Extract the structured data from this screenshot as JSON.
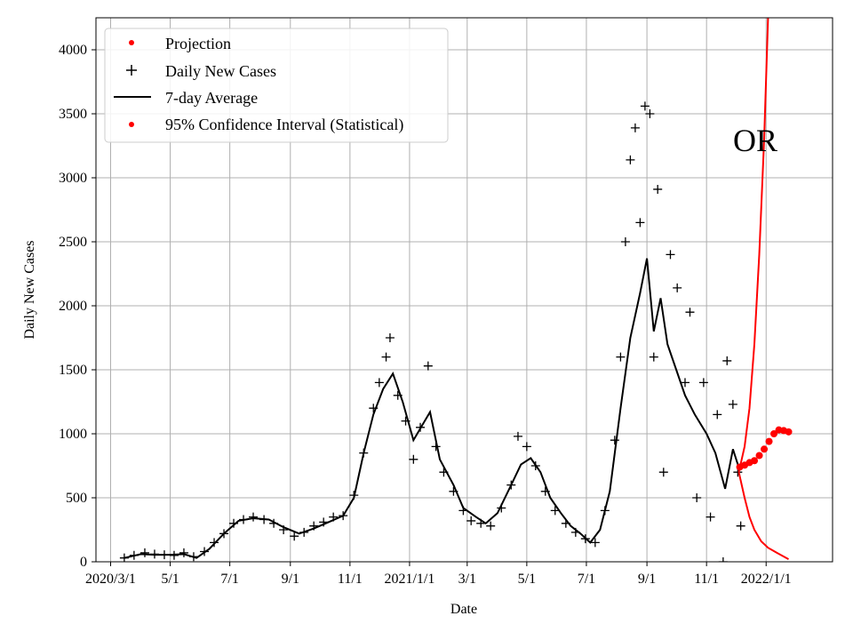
{
  "chart_data": {
    "type": "line",
    "xlabel": "Date",
    "ylabel": "Daily New Cases",
    "xlim": [
      "2020-02-15",
      "2022-03-10"
    ],
    "ylim": [
      0,
      4250
    ],
    "grid": true,
    "legend_position": "top-left",
    "x_ticks": [
      {
        "date": "2020-03-01",
        "label": "2020/3/1"
      },
      {
        "date": "2020-05-01",
        "label": "5/1"
      },
      {
        "date": "2020-07-01",
        "label": "7/1"
      },
      {
        "date": "2020-09-01",
        "label": "9/1"
      },
      {
        "date": "2020-11-01",
        "label": "11/1"
      },
      {
        "date": "2021-01-01",
        "label": "2021/1/1"
      },
      {
        "date": "2021-03-01",
        "label": "3/1"
      },
      {
        "date": "2021-05-01",
        "label": "5/1"
      },
      {
        "date": "2021-07-01",
        "label": "7/1"
      },
      {
        "date": "2021-09-01",
        "label": "9/1"
      },
      {
        "date": "2021-11-01",
        "label": "11/1"
      },
      {
        "date": "2022-01-01",
        "label": "2022/1/1"
      }
    ],
    "y_ticks": [
      {
        "value": 0,
        "label": "0"
      },
      {
        "value": 500,
        "label": "500"
      },
      {
        "value": 1000,
        "label": "1000"
      },
      {
        "value": 1500,
        "label": "1500"
      },
      {
        "value": 2000,
        "label": "2000"
      },
      {
        "value": 2500,
        "label": "2500"
      },
      {
        "value": 3000,
        "label": "3000"
      },
      {
        "value": 3500,
        "label": "3500"
      },
      {
        "value": 4000,
        "label": "4000"
      }
    ],
    "annotation": {
      "text": "OR"
    },
    "legend": [
      {
        "label": "Projection",
        "marker": "dot",
        "color": "#ff0000"
      },
      {
        "label": "Daily New Cases",
        "marker": "plus",
        "color": "#000000"
      },
      {
        "label": "7-day Average",
        "marker": "line",
        "color": "#000000"
      },
      {
        "label": "95% Confidence Interval (Statistical)",
        "marker": "dot",
        "color": "#ff0000"
      }
    ],
    "series": [
      {
        "name": "7-day Average",
        "color": "#000000",
        "points": [
          [
            "2020-03-15",
            30
          ],
          [
            "2020-04-01",
            60
          ],
          [
            "2020-04-15",
            55
          ],
          [
            "2020-05-01",
            55
          ],
          [
            "2020-05-15",
            60
          ],
          [
            "2020-05-28",
            30
          ],
          [
            "2020-06-10",
            100
          ],
          [
            "2020-06-25",
            220
          ],
          [
            "2020-07-10",
            320
          ],
          [
            "2020-07-25",
            340
          ],
          [
            "2020-08-10",
            330
          ],
          [
            "2020-08-25",
            270
          ],
          [
            "2020-09-10",
            220
          ],
          [
            "2020-09-25",
            260
          ],
          [
            "2020-10-10",
            310
          ],
          [
            "2020-10-25",
            360
          ],
          [
            "2020-11-05",
            500
          ],
          [
            "2020-11-15",
            850
          ],
          [
            "2020-11-25",
            1150
          ],
          [
            "2020-12-05",
            1350
          ],
          [
            "2020-12-15",
            1470
          ],
          [
            "2020-12-25",
            1250
          ],
          [
            "2021-01-05",
            950
          ],
          [
            "2021-01-15",
            1080
          ],
          [
            "2021-01-22",
            1170
          ],
          [
            "2021-02-01",
            800
          ],
          [
            "2021-02-15",
            600
          ],
          [
            "2021-02-25",
            420
          ],
          [
            "2021-03-10",
            350
          ],
          [
            "2021-03-20",
            300
          ],
          [
            "2021-04-01",
            380
          ],
          [
            "2021-04-15",
            600
          ],
          [
            "2021-04-25",
            760
          ],
          [
            "2021-05-05",
            810
          ],
          [
            "2021-05-15",
            700
          ],
          [
            "2021-05-25",
            500
          ],
          [
            "2021-06-05",
            380
          ],
          [
            "2021-06-15",
            280
          ],
          [
            "2021-06-25",
            220
          ],
          [
            "2021-07-05",
            150
          ],
          [
            "2021-07-15",
            250
          ],
          [
            "2021-07-25",
            550
          ],
          [
            "2021-08-05",
            1200
          ],
          [
            "2021-08-15",
            1750
          ],
          [
            "2021-08-25",
            2100
          ],
          [
            "2021-09-01",
            2370
          ],
          [
            "2021-09-08",
            1800
          ],
          [
            "2021-09-15",
            2060
          ],
          [
            "2021-09-22",
            1700
          ],
          [
            "2021-10-01",
            1500
          ],
          [
            "2021-10-10",
            1300
          ],
          [
            "2021-10-20",
            1150
          ],
          [
            "2021-11-01",
            1000
          ],
          [
            "2021-11-10",
            850
          ],
          [
            "2021-11-20",
            570
          ],
          [
            "2021-11-28",
            880
          ],
          [
            "2021-12-03",
            760
          ]
        ]
      },
      {
        "name": "Daily New Cases",
        "color": "#000000",
        "points": [
          [
            "2020-03-15",
            30
          ],
          [
            "2020-03-25",
            50
          ],
          [
            "2020-04-05",
            70
          ],
          [
            "2020-04-15",
            60
          ],
          [
            "2020-04-25",
            55
          ],
          [
            "2020-05-05",
            50
          ],
          [
            "2020-05-15",
            70
          ],
          [
            "2020-05-25",
            40
          ],
          [
            "2020-06-05",
            80
          ],
          [
            "2020-06-15",
            150
          ],
          [
            "2020-06-25",
            220
          ],
          [
            "2020-07-05",
            300
          ],
          [
            "2020-07-15",
            330
          ],
          [
            "2020-07-25",
            350
          ],
          [
            "2020-08-05",
            330
          ],
          [
            "2020-08-15",
            300
          ],
          [
            "2020-08-25",
            250
          ],
          [
            "2020-09-05",
            200
          ],
          [
            "2020-09-15",
            230
          ],
          [
            "2020-09-25",
            280
          ],
          [
            "2020-10-05",
            310
          ],
          [
            "2020-10-15",
            350
          ],
          [
            "2020-10-25",
            360
          ],
          [
            "2020-11-05",
            520
          ],
          [
            "2020-11-15",
            850
          ],
          [
            "2020-11-25",
            1200
          ],
          [
            "2020-12-01",
            1400
          ],
          [
            "2020-12-08",
            1600
          ],
          [
            "2020-12-12",
            1750
          ],
          [
            "2020-12-20",
            1300
          ],
          [
            "2020-12-28",
            1100
          ],
          [
            "2021-01-05",
            800
          ],
          [
            "2021-01-12",
            1050
          ],
          [
            "2021-01-20",
            1530
          ],
          [
            "2021-01-28",
            900
          ],
          [
            "2021-02-05",
            700
          ],
          [
            "2021-02-15",
            550
          ],
          [
            "2021-02-25",
            400
          ],
          [
            "2021-03-05",
            320
          ],
          [
            "2021-03-15",
            300
          ],
          [
            "2021-03-25",
            280
          ],
          [
            "2021-04-05",
            420
          ],
          [
            "2021-04-15",
            600
          ],
          [
            "2021-04-22",
            980
          ],
          [
            "2021-05-01",
            900
          ],
          [
            "2021-05-10",
            750
          ],
          [
            "2021-05-20",
            550
          ],
          [
            "2021-05-30",
            400
          ],
          [
            "2021-06-10",
            300
          ],
          [
            "2021-06-20",
            230
          ],
          [
            "2021-06-30",
            180
          ],
          [
            "2021-07-10",
            150
          ],
          [
            "2021-07-20",
            400
          ],
          [
            "2021-07-30",
            950
          ],
          [
            "2021-08-05",
            1600
          ],
          [
            "2021-08-10",
            2500
          ],
          [
            "2021-08-15",
            3140
          ],
          [
            "2021-08-20",
            3390
          ],
          [
            "2021-08-25",
            2650
          ],
          [
            "2021-08-30",
            3560
          ],
          [
            "2021-09-04",
            3500
          ],
          [
            "2021-09-08",
            1600
          ],
          [
            "2021-09-12",
            2910
          ],
          [
            "2021-09-18",
            700
          ],
          [
            "2021-09-25",
            2400
          ],
          [
            "2021-10-02",
            2140
          ],
          [
            "2021-10-10",
            1400
          ],
          [
            "2021-10-15",
            1950
          ],
          [
            "2021-10-22",
            500
          ],
          [
            "2021-10-29",
            1400
          ],
          [
            "2021-11-05",
            350
          ],
          [
            "2021-11-12",
            1150
          ],
          [
            "2021-11-18",
            0
          ],
          [
            "2021-11-22",
            1570
          ],
          [
            "2021-11-28",
            1230
          ],
          [
            "2021-12-03",
            700
          ],
          [
            "2021-12-06",
            280
          ]
        ]
      },
      {
        "name": "Projection",
        "color": "#ff0000",
        "points": [
          [
            "2021-12-05",
            740
          ],
          [
            "2021-12-10",
            755
          ],
          [
            "2021-12-15",
            775
          ],
          [
            "2021-12-20",
            790
          ],
          [
            "2021-12-25",
            830
          ],
          [
            "2021-12-30",
            880
          ],
          [
            "2022-01-04",
            940
          ],
          [
            "2022-01-09",
            1000
          ],
          [
            "2022-01-14",
            1030
          ],
          [
            "2022-01-19",
            1025
          ],
          [
            "2022-01-24",
            1015
          ]
        ]
      },
      {
        "name": "95% Confidence Interval (Statistical)",
        "color": "#ff0000",
        "upper": [
          [
            "2021-12-04",
            700
          ],
          [
            "2021-12-10",
            900
          ],
          [
            "2021-12-15",
            1200
          ],
          [
            "2021-12-20",
            1700
          ],
          [
            "2021-12-25",
            2400
          ],
          [
            "2021-12-30",
            3300
          ],
          [
            "2022-01-03",
            4250
          ]
        ],
        "lower": [
          [
            "2021-12-04",
            700
          ],
          [
            "2021-12-10",
            500
          ],
          [
            "2021-12-15",
            350
          ],
          [
            "2021-12-20",
            250
          ],
          [
            "2021-12-27",
            160
          ],
          [
            "2022-01-03",
            110
          ],
          [
            "2022-01-12",
            70
          ],
          [
            "2022-01-24",
            20
          ]
        ]
      }
    ]
  }
}
